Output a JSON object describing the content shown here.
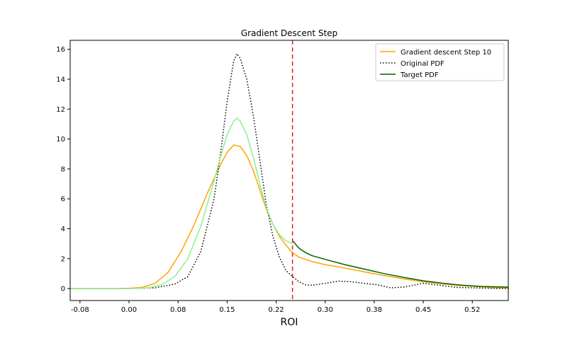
{
  "chart_data": {
    "type": "line",
    "title": "Gradient Descent Step",
    "xlabel": "ROI",
    "ylabel": "",
    "xlim": [
      -0.09,
      0.58
    ],
    "ylim": [
      -0.8,
      16.6
    ],
    "xticks": [
      -0.075,
      0.0,
      0.075,
      0.15,
      0.225,
      0.3,
      0.375,
      0.45,
      0.525
    ],
    "xtick_labels": [
      "-0.08",
      "0.00",
      "0.08",
      "0.15",
      "0.22",
      "0.30",
      "0.38",
      "0.45",
      "0.52"
    ],
    "yticks": [
      0,
      2,
      4,
      6,
      8,
      10,
      12,
      14,
      16
    ],
    "ytick_labels": [
      "0",
      "2",
      "4",
      "6",
      "8",
      "10",
      "12",
      "14",
      "16"
    ],
    "threshold_line": {
      "x": 0.25,
      "color": "#d62728",
      "style": "dashed"
    },
    "legend_position": "top-right",
    "series": [
      {
        "name": "Gradient descent Step 10",
        "color": "#ffa500",
        "style": "solid",
        "points": [
          [
            -0.09,
            0.0
          ],
          [
            -0.05,
            0.0
          ],
          [
            -0.02,
            0.0
          ],
          [
            0.0,
            0.02
          ],
          [
            0.02,
            0.08
          ],
          [
            0.04,
            0.35
          ],
          [
            0.06,
            1.1
          ],
          [
            0.08,
            2.5
          ],
          [
            0.1,
            4.3
          ],
          [
            0.12,
            6.4
          ],
          [
            0.14,
            8.3
          ],
          [
            0.15,
            9.1
          ],
          [
            0.16,
            9.6
          ],
          [
            0.17,
            9.5
          ],
          [
            0.18,
            8.9
          ],
          [
            0.19,
            7.9
          ],
          [
            0.2,
            6.6
          ],
          [
            0.21,
            5.3
          ],
          [
            0.22,
            4.3
          ],
          [
            0.23,
            3.5
          ],
          [
            0.24,
            2.9
          ],
          [
            0.25,
            2.4
          ],
          [
            0.26,
            2.1
          ],
          [
            0.28,
            1.8
          ],
          [
            0.3,
            1.6
          ],
          [
            0.32,
            1.45
          ],
          [
            0.35,
            1.2
          ],
          [
            0.38,
            0.95
          ],
          [
            0.42,
            0.65
          ],
          [
            0.45,
            0.45
          ],
          [
            0.5,
            0.22
          ],
          [
            0.55,
            0.08
          ],
          [
            0.58,
            0.04
          ]
        ]
      },
      {
        "name": "Original PDF",
        "color": "#000000",
        "style": "dotted",
        "points": [
          [
            -0.09,
            0.0
          ],
          [
            0.0,
            0.0
          ],
          [
            0.04,
            0.05
          ],
          [
            0.07,
            0.3
          ],
          [
            0.09,
            0.8
          ],
          [
            0.11,
            2.5
          ],
          [
            0.13,
            6.0
          ],
          [
            0.14,
            9.0
          ],
          [
            0.15,
            12.5
          ],
          [
            0.16,
            15.2
          ],
          [
            0.165,
            15.7
          ],
          [
            0.17,
            15.4
          ],
          [
            0.18,
            14.0
          ],
          [
            0.19,
            11.6
          ],
          [
            0.2,
            8.6
          ],
          [
            0.21,
            5.6
          ],
          [
            0.22,
            3.5
          ],
          [
            0.23,
            2.1
          ],
          [
            0.24,
            1.2
          ],
          [
            0.25,
            0.8
          ],
          [
            0.26,
            0.45
          ],
          [
            0.27,
            0.25
          ],
          [
            0.28,
            0.22
          ],
          [
            0.3,
            0.35
          ],
          [
            0.32,
            0.5
          ],
          [
            0.34,
            0.45
          ],
          [
            0.36,
            0.35
          ],
          [
            0.38,
            0.25
          ],
          [
            0.4,
            0.05
          ],
          [
            0.42,
            0.1
          ],
          [
            0.45,
            0.35
          ],
          [
            0.47,
            0.25
          ],
          [
            0.5,
            0.08
          ],
          [
            0.55,
            0.02
          ],
          [
            0.58,
            0.0
          ]
        ]
      },
      {
        "name": "",
        "color": "#90ee90",
        "style": "solid",
        "points": [
          [
            -0.09,
            0.0
          ],
          [
            0.0,
            0.0
          ],
          [
            0.03,
            0.05
          ],
          [
            0.05,
            0.25
          ],
          [
            0.07,
            0.8
          ],
          [
            0.09,
            2.0
          ],
          [
            0.11,
            4.2
          ],
          [
            0.13,
            7.2
          ],
          [
            0.14,
            8.8
          ],
          [
            0.15,
            10.3
          ],
          [
            0.16,
            11.2
          ],
          [
            0.165,
            11.4
          ],
          [
            0.17,
            11.2
          ],
          [
            0.18,
            10.3
          ],
          [
            0.19,
            8.8
          ],
          [
            0.2,
            7.0
          ],
          [
            0.21,
            5.4
          ],
          [
            0.22,
            4.3
          ],
          [
            0.23,
            3.6
          ],
          [
            0.24,
            3.2
          ],
          [
            0.25,
            3.0
          ]
        ]
      },
      {
        "name": "Target PDF",
        "color": "#006400",
        "style": "solid",
        "points": [
          [
            0.25,
            3.2
          ],
          [
            0.26,
            2.7
          ],
          [
            0.27,
            2.4
          ],
          [
            0.28,
            2.2
          ],
          [
            0.3,
            1.95
          ],
          [
            0.33,
            1.6
          ],
          [
            0.36,
            1.3
          ],
          [
            0.39,
            1.0
          ],
          [
            0.42,
            0.75
          ],
          [
            0.45,
            0.52
          ],
          [
            0.48,
            0.35
          ],
          [
            0.51,
            0.22
          ],
          [
            0.54,
            0.14
          ],
          [
            0.58,
            0.1
          ]
        ]
      }
    ]
  }
}
